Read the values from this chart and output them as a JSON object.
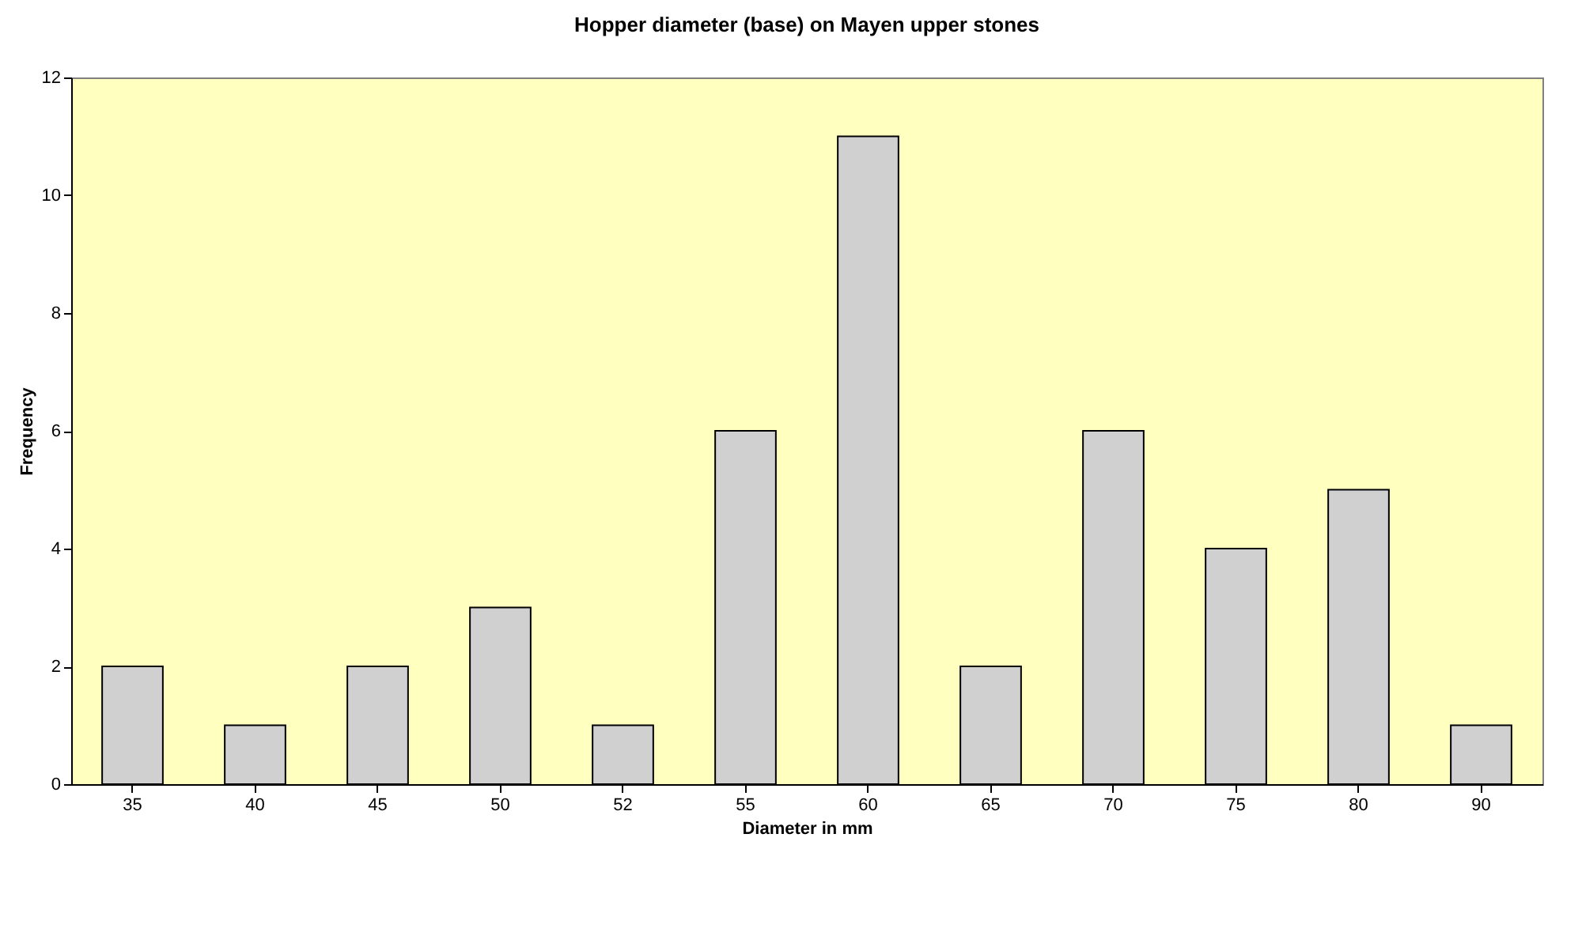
{
  "chart_data": {
    "type": "bar",
    "title": "Hopper diameter (base) on Mayen upper stones",
    "xlabel": "Diameter in mm",
    "ylabel": "Frequency",
    "categories": [
      "35",
      "40",
      "45",
      "50",
      "52",
      "55",
      "60",
      "65",
      "70",
      "75",
      "80",
      "90"
    ],
    "values": [
      2,
      1,
      2,
      3,
      1,
      6,
      11,
      2,
      6,
      4,
      5,
      1
    ],
    "color": "#d0d0d0",
    "ylim": [
      0,
      12
    ],
    "yticks": [
      0,
      2,
      4,
      6,
      8,
      10,
      12
    ]
  }
}
